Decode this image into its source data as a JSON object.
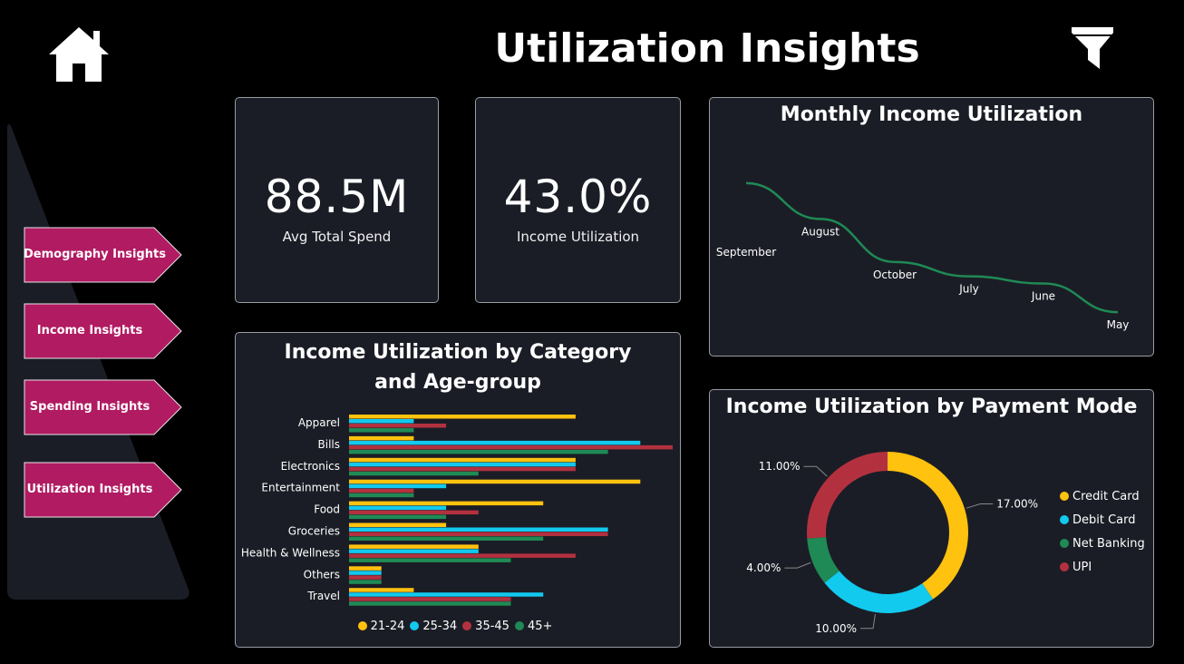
{
  "page_title": "Utilization Insights",
  "icons": {
    "home": "home-icon",
    "filter": "filter-icon"
  },
  "nav": {
    "items": [
      {
        "label": "Demography Insights"
      },
      {
        "label": "Income Insights"
      },
      {
        "label": "Spending Insights"
      },
      {
        "label": "Utilization Insights"
      }
    ],
    "color": "#b11b62"
  },
  "kpis": [
    {
      "value": "88.5M",
      "label": "Avg Total Spend"
    },
    {
      "value": "43.0%",
      "label": "Income Utilization"
    }
  ],
  "colors": {
    "21-24": "#ffc20e",
    "25-34": "#12c9ee",
    "35-45": "#b3313f",
    "45+": "#1f8a55",
    "line": "#1f8a55"
  },
  "chart_data": [
    {
      "type": "line",
      "title": "Monthly Income Utilization",
      "categories": [
        "September",
        "August",
        "October",
        "July",
        "June",
        "May"
      ],
      "values": [
        44.0,
        43.5,
        42.9,
        42.7,
        42.6,
        42.2
      ],
      "ylim": [
        42.0,
        44.2
      ],
      "labels_on_points": true
    },
    {
      "type": "bar",
      "orientation": "horizontal",
      "title": "Income Utilization by Category and Age-group",
      "categories": [
        "Apparel",
        "Bills",
        "Electronics",
        "Entertainment",
        "Food",
        "Groceries",
        "Health & Wellness",
        "Others",
        "Travel"
      ],
      "series": [
        {
          "name": "21-24",
          "values": [
            7,
            2,
            7,
            9,
            6,
            3,
            4,
            1,
            2
          ]
        },
        {
          "name": "25-34",
          "values": [
            2,
            9,
            7,
            3,
            3,
            8,
            4,
            1,
            6
          ]
        },
        {
          "name": "35-45",
          "values": [
            3,
            10,
            7,
            2,
            4,
            8,
            7,
            1,
            5
          ]
        },
        {
          "name": "45+",
          "values": [
            2,
            8,
            4,
            2,
            3,
            6,
            5,
            1,
            5
          ]
        }
      ],
      "xlim": [
        0,
        10
      ],
      "legend": "bottom"
    },
    {
      "type": "pie",
      "donut": true,
      "title": "Income Utilization by Payment Mode",
      "labels": [
        "Credit Card",
        "Debit Card",
        "Net Banking",
        "UPI"
      ],
      "values": [
        17.0,
        10.0,
        4.0,
        11.0
      ],
      "data_labels": [
        "17.00%",
        "10.00%",
        "4.00%",
        "11.00%"
      ],
      "colors": [
        "#ffc20e",
        "#12c9ee",
        "#1f8a55",
        "#b3313f"
      ],
      "legend": "right"
    }
  ]
}
